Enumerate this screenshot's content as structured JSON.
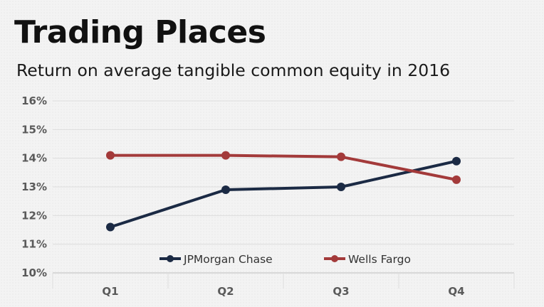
{
  "colors": {
    "jpmorgan": "#1b2a44",
    "wellsfargo": "#a33a3a",
    "grid": "#dcdcdc",
    "axis": "#bdbdbd"
  },
  "chart_data": {
    "type": "line",
    "title": "Trading Places",
    "subtitle": "Return on average tangible common equity in 2016",
    "categories": [
      "Q1",
      "Q2",
      "Q3",
      "Q4"
    ],
    "ylim": [
      10,
      16
    ],
    "yticks": [
      "10%",
      "11%",
      "12%",
      "13%",
      "14%",
      "15%",
      "16%"
    ],
    "grid": true,
    "legend_position": "bottom-center",
    "series": [
      {
        "name": "JPMorgan Chase",
        "values": [
          11.6,
          12.9,
          13.0,
          13.9
        ]
      },
      {
        "name": "Wells Fargo",
        "values": [
          14.1,
          14.1,
          14.05,
          13.25
        ]
      }
    ]
  }
}
